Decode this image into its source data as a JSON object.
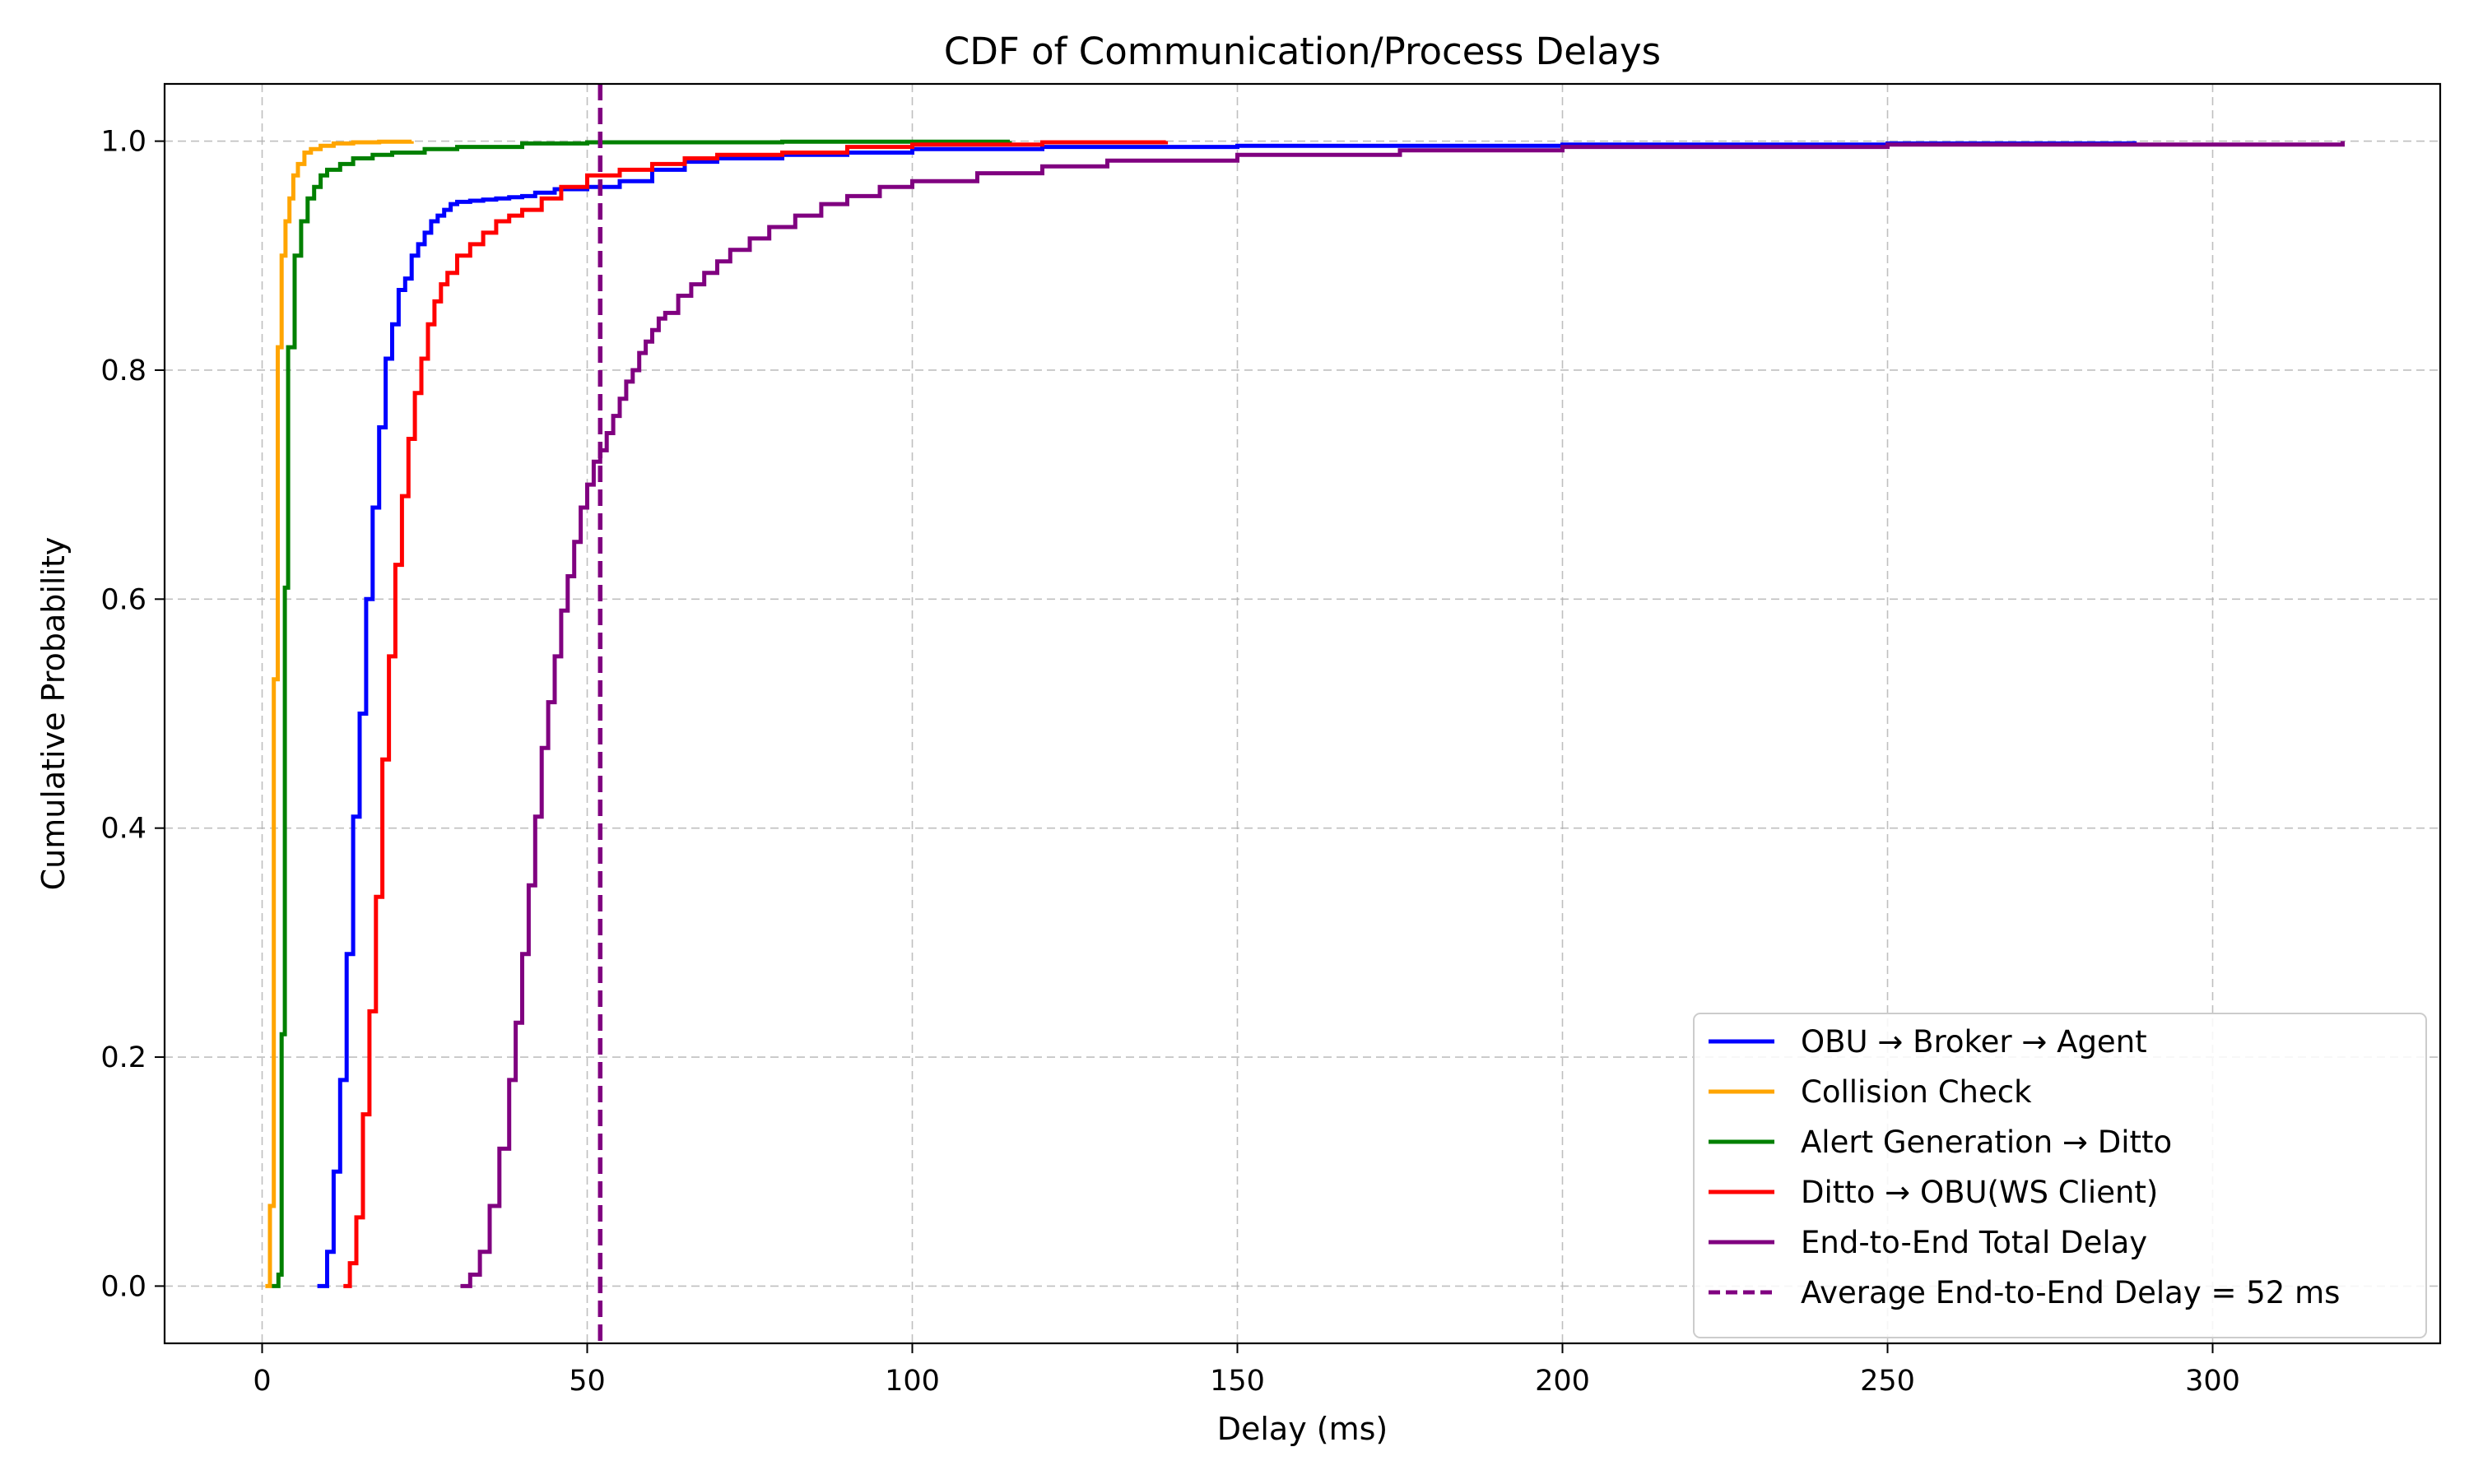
{
  "chart_data": {
    "type": "line",
    "title": "CDF of Communication/Process Delays",
    "xlabel": "Delay (ms)",
    "ylabel": "Cumulative Probability",
    "xlim": [
      -15,
      335
    ],
    "ylim": [
      -0.05,
      1.05
    ],
    "xticks": [
      0,
      50,
      100,
      150,
      200,
      250,
      300
    ],
    "xtick_labels": [
      "0",
      "50",
      "100",
      "150",
      "200",
      "250",
      "300"
    ],
    "yticks": [
      0.0,
      0.2,
      0.4,
      0.6,
      0.8,
      1.0
    ],
    "ytick_labels": [
      "0.0",
      "0.2",
      "0.4",
      "0.6",
      "0.8",
      "1.0"
    ],
    "grid": true,
    "legend_position": "lower-right",
    "series": [
      {
        "name": "OBU → Broker → Agent",
        "color": "#0000ff",
        "step": true,
        "x": [
          8.5,
          10,
          11,
          12,
          13,
          14,
          15,
          16,
          17,
          18,
          19,
          20,
          21,
          22,
          23,
          24,
          25,
          26,
          27,
          28,
          29,
          30,
          32,
          34,
          36,
          38,
          40,
          42,
          45,
          50,
          55,
          60,
          65,
          70,
          80,
          90,
          100,
          120,
          150,
          200,
          250,
          288
        ],
        "y": [
          0.0,
          0.03,
          0.1,
          0.18,
          0.29,
          0.41,
          0.5,
          0.6,
          0.68,
          0.75,
          0.81,
          0.84,
          0.87,
          0.88,
          0.9,
          0.91,
          0.92,
          0.93,
          0.935,
          0.94,
          0.945,
          0.947,
          0.948,
          0.949,
          0.95,
          0.951,
          0.952,
          0.955,
          0.958,
          0.96,
          0.965,
          0.975,
          0.982,
          0.985,
          0.988,
          0.99,
          0.993,
          0.995,
          0.996,
          0.997,
          0.998,
          1.0
        ]
      },
      {
        "name": "Collision Check",
        "color": "#ffa500",
        "step": true,
        "x": [
          0.5,
          1.2,
          1.8,
          2.4,
          3.0,
          3.6,
          4.2,
          4.8,
          5.5,
          6.5,
          7.5,
          9,
          11,
          14,
          18,
          23
        ],
        "y": [
          0.0,
          0.07,
          0.53,
          0.82,
          0.9,
          0.93,
          0.95,
          0.97,
          0.98,
          0.99,
          0.993,
          0.996,
          0.998,
          0.999,
          0.9995,
          1.0
        ]
      },
      {
        "name": "Alert Generation → Ditto",
        "color": "#008000",
        "step": true,
        "x": [
          1.5,
          2.5,
          3.0,
          3.5,
          4.0,
          5.0,
          6.0,
          7.0,
          8.0,
          9.0,
          10,
          12,
          14,
          17,
          20,
          25,
          30,
          40,
          50,
          80,
          115
        ],
        "y": [
          0.0,
          0.01,
          0.22,
          0.61,
          0.82,
          0.9,
          0.93,
          0.95,
          0.96,
          0.97,
          0.975,
          0.98,
          0.985,
          0.988,
          0.99,
          0.993,
          0.995,
          0.998,
          0.999,
          0.9995,
          1.0
        ]
      },
      {
        "name": "Ditto → OBU(WS Client)",
        "color": "#ff0000",
        "step": true,
        "x": [
          12.5,
          13.5,
          14.5,
          15.5,
          16.5,
          17.5,
          18.5,
          19.5,
          20.5,
          21.5,
          22.5,
          23.5,
          24.5,
          25.5,
          26.5,
          27.5,
          28.5,
          30,
          32,
          34,
          36,
          38,
          40,
          43,
          46,
          50,
          55,
          60,
          65,
          70,
          80,
          90,
          100,
          120,
          139
        ],
        "y": [
          0.0,
          0.02,
          0.06,
          0.15,
          0.24,
          0.34,
          0.46,
          0.55,
          0.63,
          0.69,
          0.74,
          0.78,
          0.81,
          0.84,
          0.86,
          0.875,
          0.885,
          0.9,
          0.91,
          0.92,
          0.93,
          0.935,
          0.94,
          0.95,
          0.96,
          0.97,
          0.975,
          0.98,
          0.985,
          0.988,
          0.99,
          0.995,
          0.997,
          0.999,
          1.0
        ]
      },
      {
        "name": "End-to-End Total Delay",
        "color": "#800080",
        "step": true,
        "x": [
          30.5,
          32,
          33.5,
          35,
          36.5,
          38,
          39,
          40,
          41,
          42,
          43,
          44,
          45,
          46,
          47,
          48,
          49,
          50,
          51,
          52,
          53,
          54,
          55,
          56,
          57,
          58,
          59,
          60,
          61,
          62,
          64,
          66,
          68,
          70,
          72,
          75,
          78,
          82,
          86,
          90,
          95,
          100,
          110,
          120,
          130,
          150,
          175,
          200,
          250,
          320
        ],
        "y": [
          0.0,
          0.01,
          0.03,
          0.07,
          0.12,
          0.18,
          0.23,
          0.29,
          0.35,
          0.41,
          0.47,
          0.51,
          0.55,
          0.59,
          0.62,
          0.65,
          0.68,
          0.7,
          0.72,
          0.73,
          0.745,
          0.76,
          0.775,
          0.79,
          0.8,
          0.815,
          0.825,
          0.835,
          0.845,
          0.85,
          0.865,
          0.875,
          0.885,
          0.895,
          0.905,
          0.915,
          0.925,
          0.935,
          0.945,
          0.952,
          0.96,
          0.965,
          0.972,
          0.978,
          0.983,
          0.988,
          0.992,
          0.995,
          0.997,
          1.0
        ]
      }
    ],
    "reference_lines": [
      {
        "name": "Average End-to-End Delay = 52 ms",
        "orientation": "vertical",
        "x": 52,
        "color": "#800080",
        "style": "dashed"
      }
    ]
  }
}
